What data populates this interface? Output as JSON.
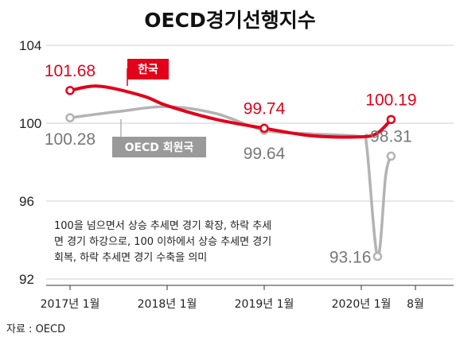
{
  "chart_data": {
    "type": "line",
    "title": "OECD경기선행지수",
    "ylim": [
      92,
      104
    ],
    "yticks": [
      "104",
      "100",
      "96",
      "92"
    ],
    "ytick_values": [
      104,
      100,
      96,
      92
    ],
    "x_labels": [
      "2017년 1월",
      "2018년 1월",
      "2019년 1월",
      "2020년 1월",
      "8월"
    ],
    "grid": true,
    "series": [
      {
        "name": "한국",
        "color": "#e2001a",
        "points": [
          [
            0,
            101.68
          ],
          [
            0.3,
            101.9
          ],
          [
            0.75,
            101.4
          ],
          [
            1.0,
            100.9
          ],
          [
            1.5,
            100.2
          ],
          [
            2.0,
            99.74
          ],
          [
            2.5,
            99.35
          ],
          [
            3.0,
            99.3
          ],
          [
            3.3,
            99.5
          ],
          [
            3.55,
            100.19
          ]
        ],
        "labels": [
          {
            "text": "101.68",
            "at": [
              0,
              101.68
            ]
          },
          {
            "text": "99.74",
            "at": [
              2.0,
              99.74
            ]
          },
          {
            "text": "100.19",
            "at": [
              3.55,
              100.19
            ]
          }
        ]
      },
      {
        "name": "OECD 회원국",
        "color": "#b3b3b3",
        "points": [
          [
            0,
            100.28
          ],
          [
            0.5,
            100.6
          ],
          [
            1.0,
            100.85
          ],
          [
            1.5,
            100.5
          ],
          [
            2.0,
            99.64
          ],
          [
            2.5,
            99.45
          ],
          [
            3.0,
            99.3
          ],
          [
            3.1,
            98.8
          ],
          [
            3.3,
            93.16
          ],
          [
            3.45,
            97.3
          ],
          [
            3.55,
            98.31
          ]
        ],
        "labels": [
          {
            "text": "100.28",
            "at": [
              0,
              100.28
            ]
          },
          {
            "text": "99.64",
            "at": [
              2.0,
              99.64
            ]
          },
          {
            "text": "93.16",
            "at": [
              3.3,
              93.16
            ]
          },
          {
            "text": "98.31",
            "at": [
              3.55,
              98.31
            ]
          }
        ]
      }
    ],
    "annotation": [
      "100을 넘으면서 상승 추세면 경기 확장, 하락 추세",
      "면 경기 하강으로, 100 이하에서 상승 추세면 경기",
      "회복, 하락 추세면 경기 수축을 의미"
    ],
    "source": "자료 : OECD"
  }
}
